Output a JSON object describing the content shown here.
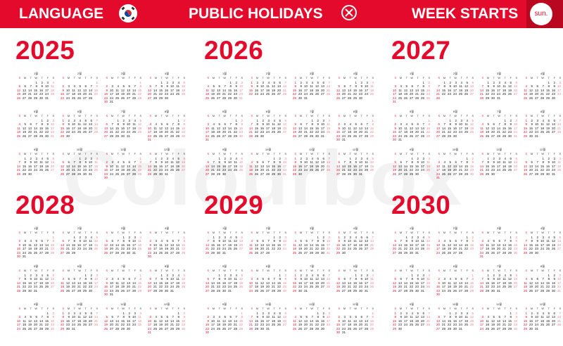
{
  "header": {
    "language_label": "LANGUAGE",
    "flag_icon": "south-korea-flag-icon",
    "holidays_label": "PUBLIC HOLIDAYS",
    "holidays_icon": "close-circle-icon",
    "week_starts_label": "WEEK STARTS",
    "week_start_value": "sun.",
    "colors": {
      "bar": "#e30a2c",
      "button": "#b8071f",
      "text": "#ffffff"
    }
  },
  "watermark": "Colourbox",
  "calendar": {
    "accent_color": "#e30a2c",
    "weekday_headers": [
      "S",
      "M",
      "T",
      "W",
      "T",
      "F",
      "S"
    ],
    "years": [
      {
        "year": "2025",
        "first_weekday": 3,
        "leap": false
      },
      {
        "year": "2026",
        "first_weekday": 4,
        "leap": false
      },
      {
        "year": "2027",
        "first_weekday": 5,
        "leap": false
      },
      {
        "year": "2028",
        "first_weekday": 6,
        "leap": true
      },
      {
        "year": "2029",
        "first_weekday": 1,
        "leap": false
      },
      {
        "year": "2030",
        "first_weekday": 2,
        "leap": false
      }
    ],
    "month_labels": [
      "1월",
      "2월",
      "3월",
      "4월",
      "5월",
      "6월",
      "7월",
      "8월",
      "9월",
      "10월",
      "11월",
      "12월"
    ]
  }
}
